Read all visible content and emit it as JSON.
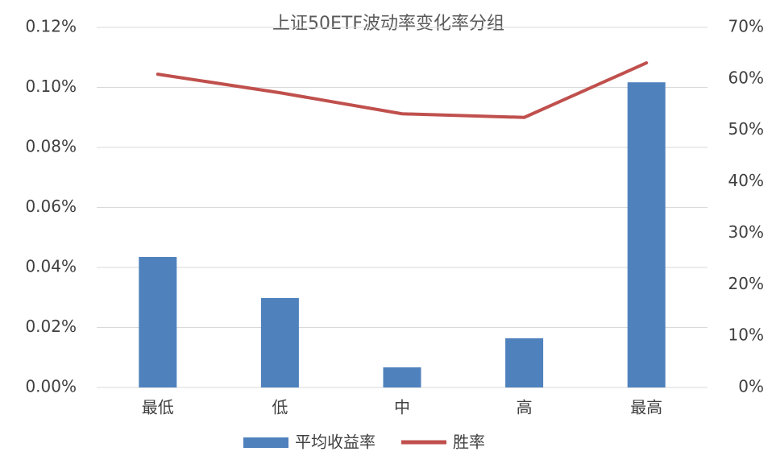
{
  "chart_data": {
    "type": "bar_line",
    "title": "上证50ETF波动率变化率分组",
    "categories": [
      "最低",
      "低",
      "中",
      "高",
      "最高"
    ],
    "series": [
      {
        "name": "平均收益率",
        "type": "bar",
        "color": "#4f81bd",
        "values": [
          0.0435,
          0.0298,
          0.0067,
          0.0164,
          0.1017
        ]
      },
      {
        "name": "胜率",
        "type": "line",
        "axis": "y2",
        "color": "#c0504d",
        "values": [
          60.9,
          57.3,
          53.2,
          52.5,
          63.1
        ]
      }
    ],
    "ylim": [
      0,
      0.12
    ],
    "yticks": [
      {
        "value": 0,
        "label": "0.00%"
      },
      {
        "value": 0.02,
        "label": "0.02%"
      },
      {
        "value": 0.04,
        "label": "0.04%"
      },
      {
        "value": 0.06,
        "label": "0.06%"
      },
      {
        "value": 0.08,
        "label": "0.08%"
      },
      {
        "value": 0.1,
        "label": "0.10%"
      },
      {
        "value": 0.12,
        "label": "0.12%"
      }
    ],
    "y2lim": [
      0,
      70
    ],
    "y2ticks": [
      {
        "value": 0,
        "label": "0%"
      },
      {
        "value": 10,
        "label": "10%"
      },
      {
        "value": 20,
        "label": "20%"
      },
      {
        "value": 30,
        "label": "30%"
      },
      {
        "value": 40,
        "label": "40%"
      },
      {
        "value": 50,
        "label": "50%"
      },
      {
        "value": 60,
        "label": "60%"
      },
      {
        "value": 70,
        "label": "70%"
      }
    ],
    "grid": true,
    "legend": "bottom"
  }
}
